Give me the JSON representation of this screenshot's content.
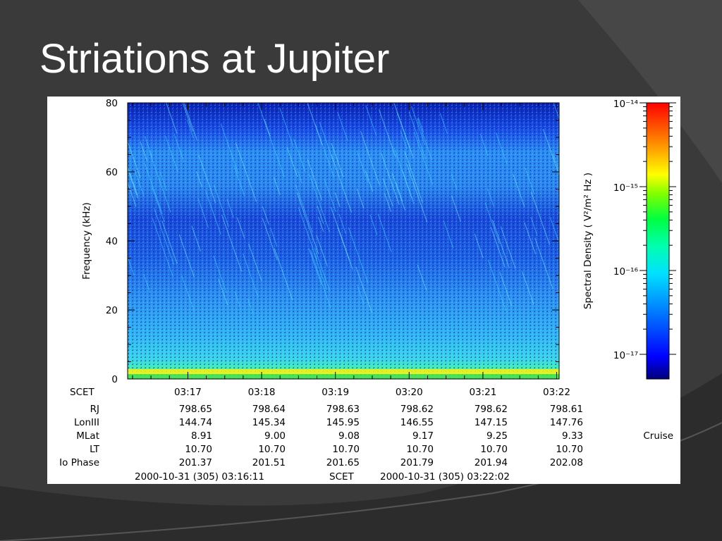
{
  "slide": {
    "title": "Striations at Jupiter"
  },
  "chart_data": {
    "type": "heatmap",
    "ylabel": "Frequency (kHz)",
    "ylim": [
      0,
      80
    ],
    "yticks": [
      "0",
      "20",
      "40",
      "60",
      "80"
    ],
    "xticks": [
      "03:17",
      "03:18",
      "03:19",
      "03:20",
      "03:21",
      "03:22"
    ],
    "colorbar": {
      "label": "Spectral Density ( V²/m² Hz )",
      "ticks": [
        "10⁻¹⁴",
        "10⁻¹⁵",
        "10⁻¹⁶",
        "10⁻¹⁷"
      ],
      "range": [
        "1e-17.3",
        "1e-14"
      ],
      "colors": [
        "#00008b",
        "#0000ff",
        "#00bfff",
        "#00ffc0",
        "#00ff00",
        "#ffff00",
        "#ff8000",
        "#ff0000"
      ]
    },
    "ephemeris_rows": [
      {
        "label": "SCET",
        "values": [
          "03:17",
          "03:18",
          "03:19",
          "03:20",
          "03:21",
          "03:22"
        ]
      },
      {
        "label": "RJ",
        "values": [
          "798.65",
          "798.64",
          "798.63",
          "798.62",
          "798.62",
          "798.61"
        ]
      },
      {
        "label": "LonIII",
        "values": [
          "144.74",
          "145.34",
          "145.95",
          "146.55",
          "147.15",
          "147.76"
        ]
      },
      {
        "label": "MLat",
        "values": [
          "8.91",
          "9.00",
          "9.08",
          "9.17",
          "9.25",
          "9.33"
        ]
      },
      {
        "label": "LT",
        "values": [
          "10.70",
          "10.70",
          "10.70",
          "10.70",
          "10.70",
          "10.70"
        ]
      },
      {
        "label": "Io Phase",
        "values": [
          "201.37",
          "201.51",
          "201.65",
          "201.79",
          "201.94",
          "202.08"
        ]
      }
    ],
    "time_range": {
      "start": "2000-10-31 (305) 03:16:11",
      "mid_label": "SCET",
      "end": "2000-10-31 (305) 03:22:02"
    },
    "mission_phase": "Cruise"
  }
}
